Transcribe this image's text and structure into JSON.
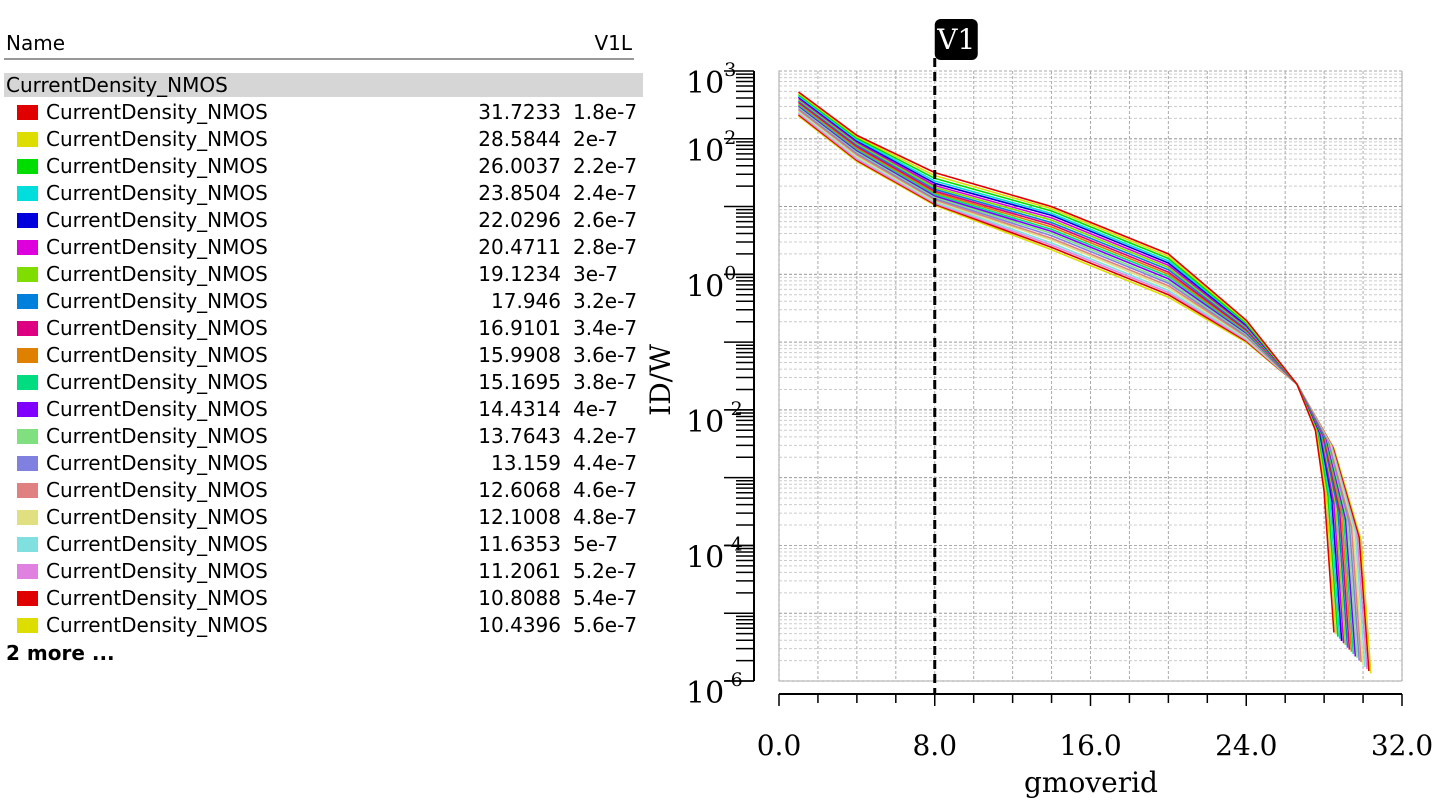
{
  "panel": {
    "name_header": "Name",
    "column_header": "V1L",
    "group": "CurrentDensity_NMOS",
    "more": "2 more ..."
  },
  "chart_data": {
    "type": "line",
    "ylabel": "ID/W",
    "xlabel": "gmoverid",
    "log_y": true,
    "grid": true,
    "cursor": {
      "label": "V1",
      "x": 8
    },
    "xlim": [
      0,
      32
    ],
    "ylim": [
      1e-06,
      1000
    ],
    "xticks": [
      {
        "value": 0,
        "label": "0.0"
      },
      {
        "value": 8,
        "label": "8.0"
      },
      {
        "value": 16,
        "label": "16.0"
      },
      {
        "value": 24,
        "label": "24.0"
      },
      {
        "value": 32,
        "label": "32.0"
      }
    ],
    "xticks_minor": [
      2,
      4,
      6,
      10,
      12,
      14,
      18,
      20,
      22,
      26,
      28,
      30
    ],
    "yticks": [
      {
        "value": 1000,
        "label": "10",
        "exponent": "3"
      },
      {
        "value": 100,
        "label": "10",
        "exponent": "2"
      },
      {
        "value": 1,
        "label": "10",
        "exponent": "0"
      },
      {
        "value": 0.01,
        "label": "10",
        "exponent": "-2"
      },
      {
        "value": 0.0001,
        "label": "10",
        "exponent": "-4"
      },
      {
        "value": 1e-06,
        "label": "10",
        "exponent": "-6"
      }
    ],
    "series": [
      {
        "name": "CurrentDensity_NMOS",
        "color": "#e00000",
        "cursor_value": 31.7233,
        "L": "1.8e-7",
        "x": [
          1,
          4,
          8,
          14,
          20,
          24,
          26.6,
          27.55,
          28.0,
          28.5
        ],
        "values": [
          490,
          112,
          31.7233,
          10,
          2.0,
          0.21,
          0.024,
          0.005,
          0.00063,
          5.2e-06
        ]
      },
      {
        "name": "CurrentDensity_NMOS",
        "color": "#dddd00",
        "cursor_value": 28.5844,
        "L": "2e-7",
        "x": [
          1,
          4,
          8,
          14,
          20,
          24,
          26.6,
          27.6,
          28.1,
          28.6
        ],
        "values": [
          469,
          107,
          28.5844,
          9.3,
          1.85,
          0.2,
          0.024,
          0.0049,
          0.00058,
          4.9e-06
        ]
      },
      {
        "name": "CurrentDensity_NMOS",
        "color": "#00dd00",
        "cursor_value": 26.0037,
        "L": "2.2e-7",
        "x": [
          1,
          4,
          8,
          14,
          20,
          24,
          26.6,
          27.65,
          28.2,
          28.7
        ],
        "values": [
          450,
          102,
          26.0037,
          8.6,
          1.71,
          0.19,
          0.024,
          0.0047,
          0.00053,
          4.5e-06
        ]
      },
      {
        "name": "CurrentDensity_NMOS",
        "color": "#00dddd",
        "cursor_value": 23.8504,
        "L": "2.4e-7",
        "x": [
          1,
          4,
          8,
          14,
          20,
          24,
          26.6,
          27.7,
          28.3,
          28.8
        ],
        "values": [
          431,
          97,
          23.8504,
          7.9,
          1.58,
          0.186,
          0.024,
          0.0045,
          0.00049,
          4.2e-06
        ]
      },
      {
        "name": "CurrentDensity_NMOS",
        "color": "#0000dd",
        "cursor_value": 22.0296,
        "L": "2.6e-7",
        "x": [
          1,
          4,
          8,
          14,
          20,
          24,
          26.6,
          27.75,
          28.4,
          28.9
        ],
        "values": [
          413,
          93,
          22.0296,
          7.4,
          1.47,
          0.179,
          0.024,
          0.0044,
          0.00044,
          3.9e-06
        ]
      },
      {
        "name": "CurrentDensity_NMOS",
        "color": "#dd00dd",
        "cursor_value": 20.4711,
        "L": "2.8e-7",
        "x": [
          1,
          4,
          8,
          14,
          20,
          24,
          26.6,
          27.8,
          28.5,
          29.0
        ],
        "values": [
          395,
          89,
          20.4711,
          6.8,
          1.36,
          0.171,
          0.024,
          0.0043,
          0.00041,
          3.6e-06
        ]
      },
      {
        "name": "CurrentDensity_NMOS",
        "color": "#80dd00",
        "cursor_value": 19.1234,
        "L": "3e-7",
        "x": [
          1,
          4,
          8,
          14,
          20,
          24,
          26.6,
          27.85,
          28.6,
          29.1
        ],
        "values": [
          379,
          85,
          19.1234,
          6.3,
          1.26,
          0.165,
          0.024,
          0.0041,
          0.00037,
          3.4e-06
        ]
      },
      {
        "name": "CurrentDensity_NMOS",
        "color": "#0080dd",
        "cursor_value": 17.946,
        "L": "3.2e-7",
        "x": [
          1,
          4,
          8,
          14,
          20,
          24,
          26.6,
          27.9,
          28.7,
          29.2
        ],
        "values": [
          363,
          81,
          17.946,
          5.8,
          1.17,
          0.158,
          0.024,
          0.004,
          0.00034,
          3.1e-06
        ]
      },
      {
        "name": "CurrentDensity_NMOS",
        "color": "#dd0080",
        "cursor_value": 16.9101,
        "L": "3.4e-7",
        "x": [
          1,
          4,
          8,
          14,
          20,
          24,
          26.6,
          27.95,
          28.8,
          29.3
        ],
        "values": [
          348,
          77,
          16.9101,
          5.4,
          1.08,
          0.152,
          0.024,
          0.0039,
          0.00031,
          2.9e-06
        ]
      },
      {
        "name": "CurrentDensity_NMOS",
        "color": "#e08000",
        "cursor_value": 15.9908,
        "L": "3.6e-7",
        "x": [
          1,
          4,
          8,
          14,
          20,
          24,
          26.6,
          28.0,
          28.9,
          29.4
        ],
        "values": [
          333,
          73,
          15.9908,
          5.0,
          1.0,
          0.147,
          0.024,
          0.0037,
          0.00029,
          2.7e-06
        ]
      },
      {
        "name": "CurrentDensity_NMOS",
        "color": "#00dd80",
        "cursor_value": 15.1695,
        "L": "3.8e-7",
        "x": [
          1,
          4,
          8,
          14,
          20,
          24,
          26.6,
          28.05,
          29.0,
          29.5
        ],
        "values": [
          319,
          70,
          15.1695,
          4.6,
          0.93,
          0.141,
          0.024,
          0.0036,
          0.00026,
          2.5e-06
        ]
      },
      {
        "name": "CurrentDensity_NMOS",
        "color": "#8000ff",
        "cursor_value": 14.4314,
        "L": "4e-7",
        "x": [
          1,
          4,
          8,
          14,
          20,
          24,
          26.6,
          28.1,
          29.1,
          29.6
        ],
        "values": [
          306,
          67,
          14.4314,
          4.3,
          0.86,
          0.136,
          0.024,
          0.0035,
          0.00024,
          2.3e-06
        ]
      },
      {
        "name": "CurrentDensity_NMOS",
        "color": "#80e080",
        "cursor_value": 13.7643,
        "L": "4.2e-7",
        "x": [
          1,
          4,
          8,
          14,
          20,
          24,
          26.6,
          28.15,
          29.2,
          29.7
        ],
        "values": [
          293,
          64,
          13.7643,
          4.0,
          0.79,
          0.13,
          0.024,
          0.0034,
          0.00022,
          2.2e-06
        ]
      },
      {
        "name": "CurrentDensity_NMOS",
        "color": "#8080e0",
        "cursor_value": 13.159,
        "L": "4.4e-7",
        "x": [
          1,
          4,
          8,
          14,
          20,
          24,
          26.6,
          28.2,
          29.3,
          29.8
        ],
        "values": [
          281,
          61,
          13.159,
          3.7,
          0.74,
          0.125,
          0.024,
          0.0033,
          0.0002,
          2e-06
        ]
      },
      {
        "name": "CurrentDensity_NMOS",
        "color": "#e08080",
        "cursor_value": 12.6068,
        "L": "4.6e-7",
        "x": [
          1,
          4,
          8,
          14,
          20,
          24,
          26.6,
          28.25,
          29.4,
          29.9
        ],
        "values": [
          269,
          58,
          12.6068,
          3.4,
          0.68,
          0.12,
          0.024,
          0.0032,
          0.00019,
          1.9e-06
        ]
      },
      {
        "name": "CurrentDensity_NMOS",
        "color": "#e0e080",
        "cursor_value": 12.1008,
        "L": "4.8e-7",
        "x": [
          1,
          4,
          8,
          14,
          20,
          24,
          26.6,
          28.3,
          29.5,
          30.0
        ],
        "values": [
          258,
          55,
          12.1008,
          3.2,
          0.63,
          0.116,
          0.024,
          0.0031,
          0.00017,
          1.7e-06
        ]
      },
      {
        "name": "CurrentDensity_NMOS",
        "color": "#80e0e0",
        "cursor_value": 11.6353,
        "L": "5e-7",
        "x": [
          1,
          4,
          8,
          14,
          20,
          24,
          26.6,
          28.35,
          29.6,
          30.1
        ],
        "values": [
          247,
          53,
          11.6353,
          2.9,
          0.58,
          0.111,
          0.024,
          0.003,
          0.00016,
          1.6e-06
        ]
      },
      {
        "name": "CurrentDensity_NMOS",
        "color": "#e080e0",
        "cursor_value": 11.2061,
        "L": "5.2e-7",
        "x": [
          1,
          4,
          8,
          14,
          20,
          24,
          26.6,
          28.4,
          29.7,
          30.2
        ],
        "values": [
          237,
          50,
          11.2061,
          2.7,
          0.54,
          0.107,
          0.024,
          0.0029,
          0.00014,
          1.5e-06
        ]
      },
      {
        "name": "CurrentDensity_NMOS",
        "color": "#e00000",
        "cursor_value": 10.8088,
        "L": "5.4e-7",
        "x": [
          1,
          4,
          8,
          14,
          20,
          24,
          26.6,
          28.45,
          29.8,
          30.3
        ],
        "values": [
          226,
          48,
          10.8088,
          2.5,
          0.5,
          0.103,
          0.024,
          0.0028,
          0.00013,
          1.4e-06
        ]
      },
      {
        "name": "CurrentDensity_NMOS",
        "color": "#dddd00",
        "cursor_value": 10.4396,
        "L": "5.6e-7",
        "x": [
          1,
          4,
          8,
          14,
          20,
          24,
          26.6,
          28.5,
          29.9,
          30.4
        ],
        "values": [
          217,
          46,
          10.4396,
          2.3,
          0.46,
          0.099,
          0.024,
          0.0027,
          0.00012,
          1.3e-06
        ]
      }
    ]
  }
}
